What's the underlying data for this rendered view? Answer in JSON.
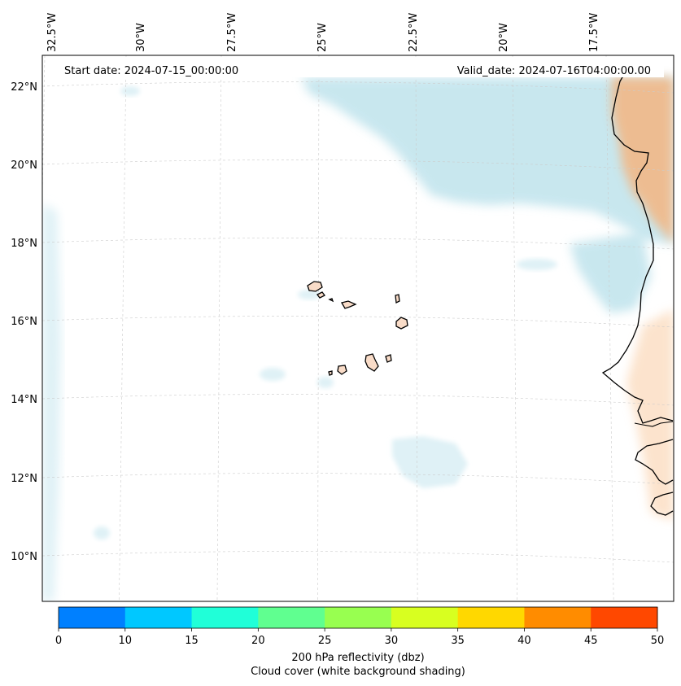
{
  "header": {
    "start_date": "Start date: 2024-07-15_00:00:00",
    "valid_date": "Valid_date: 2024-07-16T04:00:00.00"
  },
  "longitude_labels": [
    "32.5°W",
    "30°W",
    "27.5°W",
    "25°W",
    "22.5°W",
    "20°W",
    "17.5°W"
  ],
  "latitude_labels": [
    "22°N",
    "20°N",
    "18°N",
    "16°N",
    "14°N",
    "12°N",
    "10°N"
  ],
  "colorbar": {
    "ticks": [
      "0",
      "10",
      "15",
      "20",
      "25",
      "30",
      "35",
      "40",
      "45",
      "50"
    ],
    "colors": [
      "#0080ff",
      "#00c8ff",
      "#20ffd8",
      "#60ff90",
      "#98ff50",
      "#d8ff20",
      "#ffd800",
      "#ff8c00",
      "#ff4800"
    ],
    "label_line1": "200 hPa reflectivity (dbz)",
    "label_line2": "Cloud cover (white background shading)"
  },
  "shading_colors": {
    "cloud_blue": "#bfe3ec",
    "cloud_blue_light": "#dff1f6",
    "land_orange": "#f7b27a",
    "land_orange_light": "#fbd8b8",
    "island_fill": "#f9dcc8",
    "grid": "#cccccc",
    "coast": "#000000"
  }
}
